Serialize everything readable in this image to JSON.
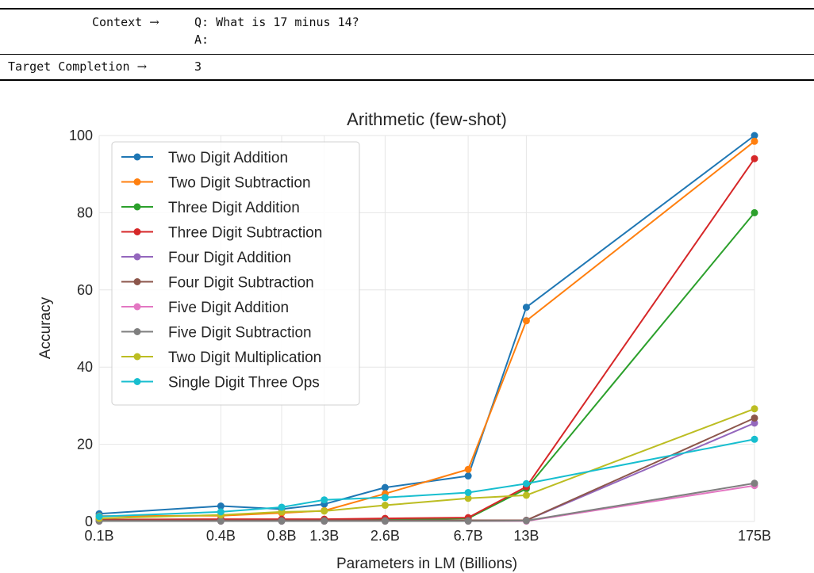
{
  "prompt": {
    "context_label": "Context",
    "arrow": "→",
    "context_lines": [
      "Q: What is 17 minus 14?",
      "A:"
    ],
    "target_label": "Target Completion",
    "target_value": "3"
  },
  "chart_data": {
    "type": "line",
    "title": "Arithmetic (few-shot)",
    "xlabel": "Parameters in LM (Billions)",
    "ylabel": "Accuracy",
    "ylim": [
      0,
      100
    ],
    "yticks": [
      0,
      20,
      40,
      60,
      80,
      100
    ],
    "x_scale": "log",
    "x": [
      0.1,
      0.4,
      0.8,
      1.3,
      2.6,
      6.7,
      13,
      175
    ],
    "x_tick_labels": [
      "0.1B",
      "0.4B",
      "0.8B",
      "1.3B",
      "2.6B",
      "6.7B",
      "13B",
      "175B"
    ],
    "grid": true,
    "legend_position": "top-left",
    "series": [
      {
        "name": "Two Digit Addition",
        "color": "#1f77b4",
        "values": [
          2.0,
          4.0,
          3.2,
          4.5,
          8.8,
          11.8,
          55.5,
          100.0
        ]
      },
      {
        "name": "Two Digit Subtraction",
        "color": "#ff7f0e",
        "values": [
          1.4,
          1.5,
          2.2,
          2.8,
          7.2,
          13.5,
          52.0,
          98.5
        ]
      },
      {
        "name": "Three Digit Addition",
        "color": "#2ca02c",
        "values": [
          0.3,
          0.3,
          0.3,
          0.3,
          0.5,
          0.8,
          8.5,
          80.0
        ]
      },
      {
        "name": "Three Digit Subtraction",
        "color": "#d62728",
        "values": [
          0.5,
          0.6,
          0.6,
          0.6,
          0.8,
          1.0,
          9.0,
          94.0
        ]
      },
      {
        "name": "Four Digit Addition",
        "color": "#9467bd",
        "values": [
          0.2,
          0.2,
          0.2,
          0.2,
          0.2,
          0.2,
          0.3,
          25.5
        ]
      },
      {
        "name": "Four Digit Subtraction",
        "color": "#8c564b",
        "values": [
          0.3,
          0.3,
          0.3,
          0.3,
          0.3,
          0.3,
          0.3,
          26.8
        ]
      },
      {
        "name": "Five Digit Addition",
        "color": "#e377c2",
        "values": [
          0.1,
          0.1,
          0.1,
          0.1,
          0.1,
          0.1,
          0.1,
          9.3
        ]
      },
      {
        "name": "Five Digit Subtraction",
        "color": "#7f7f7f",
        "values": [
          0.1,
          0.1,
          0.1,
          0.1,
          0.1,
          0.1,
          0.2,
          9.9
        ]
      },
      {
        "name": "Two Digit Multiplication",
        "color": "#bcbd22",
        "values": [
          0.8,
          1.7,
          2.5,
          2.7,
          4.2,
          6.0,
          6.8,
          29.2
        ]
      },
      {
        "name": "Single Digit Three Ops",
        "color": "#17becf",
        "values": [
          1.3,
          2.5,
          3.7,
          5.6,
          6.2,
          7.5,
          9.8,
          21.3
        ]
      }
    ]
  }
}
